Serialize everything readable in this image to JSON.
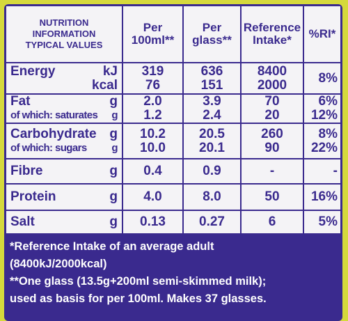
{
  "header": {
    "title_lines": [
      "NUTRITION",
      "INFORMATION",
      "TYPICAL VALUES"
    ],
    "columns": [
      [
        "Per",
        "100ml**"
      ],
      [
        "Per",
        "glass**"
      ],
      [
        "Reference",
        "Intake*"
      ],
      [
        "%RI*"
      ]
    ]
  },
  "rows": [
    {
      "label": "Energy",
      "percent": "8%",
      "lines": [
        {
          "unit": "kJ",
          "values": [
            "319",
            "636",
            "8400"
          ]
        },
        {
          "unit": "kcal",
          "values": [
            "76",
            "151",
            "2000"
          ]
        }
      ]
    },
    {
      "lines": [
        {
          "label": "Fat",
          "unit": "g",
          "values": [
            "2.0",
            "3.9",
            "70"
          ],
          "percent": "6%"
        },
        {
          "label": "of which: saturates",
          "unit": "g",
          "values": [
            "1.2",
            "2.4",
            "20"
          ],
          "percent": "12%"
        }
      ]
    },
    {
      "lines": [
        {
          "label": "Carbohydrate",
          "unit": "g",
          "values": [
            "10.2",
            "20.5",
            "260"
          ],
          "percent": "8%"
        },
        {
          "label": "of which: sugars",
          "unit": "g",
          "values": [
            "10.0",
            "20.1",
            "90"
          ],
          "percent": "22%"
        }
      ]
    },
    {
      "lines": [
        {
          "label": "Fibre",
          "unit": "g",
          "values": [
            "0.4",
            "0.9",
            "-"
          ],
          "percent": "-"
        }
      ]
    },
    {
      "lines": [
        {
          "label": "Protein",
          "unit": "g",
          "values": [
            "4.0",
            "8.0",
            "50"
          ],
          "percent": "16%"
        }
      ]
    },
    {
      "lines": [
        {
          "label": "Salt",
          "unit": "g",
          "values": [
            "0.13",
            "0.27",
            "6"
          ],
          "percent": "5%"
        }
      ]
    }
  ],
  "footnotes": [
    "*Reference Intake of an average adult",
    "(8400kJ/2000kcal)",
    "**One glass (13.5g+200ml semi-skimmed milk);",
    "used as basis for per 100ml. Makes 37 glasses."
  ]
}
